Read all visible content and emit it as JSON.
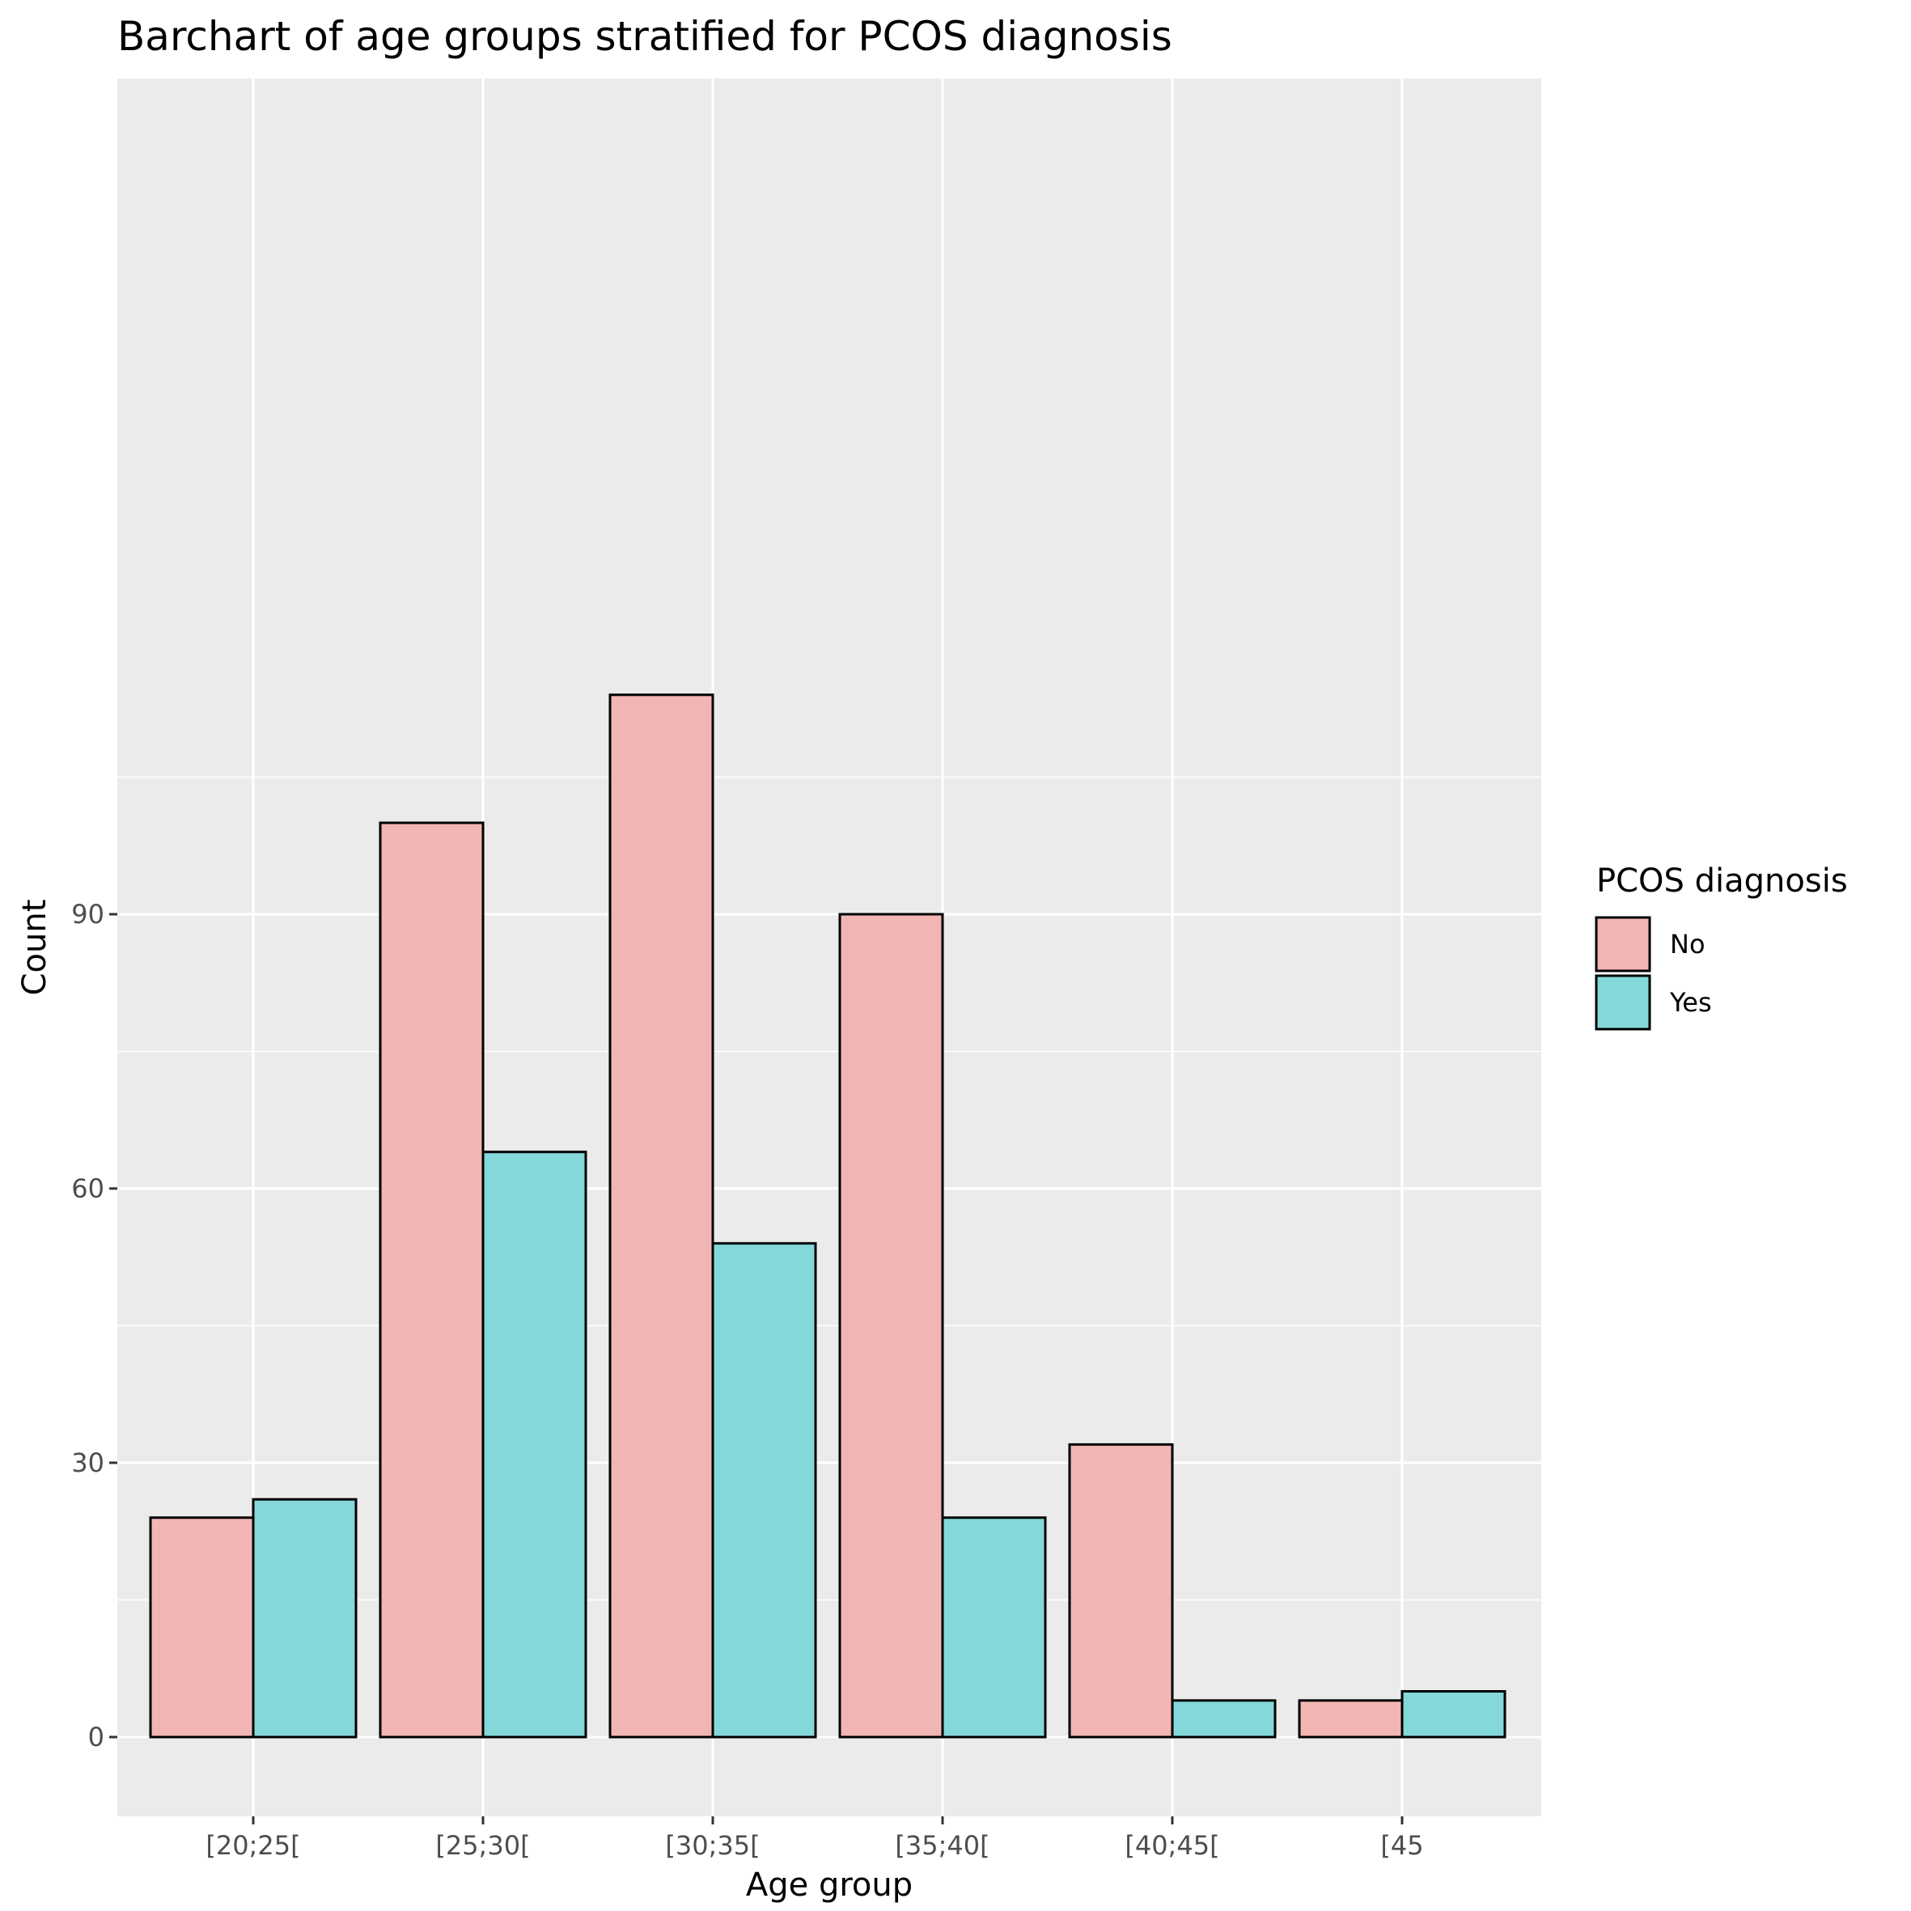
{
  "chart_data": {
    "type": "bar",
    "title": "Barchart of age groups stratified for PCOS diagnosis",
    "xlabel": "Age group",
    "ylabel": "Count",
    "categories": [
      "[20;25[",
      "[25;30[",
      "[30;35[",
      "[35;40[",
      "[40;45[",
      "[45"
    ],
    "series": [
      {
        "name": "No",
        "color": "#F1B6B3",
        "values": [
          24,
          100,
          114,
          90,
          32,
          4
        ]
      },
      {
        "name": "Yes",
        "color": "#85D8DA",
        "values": [
          26,
          64,
          54,
          24,
          4,
          5
        ]
      }
    ],
    "ylim": [
      -5,
      120
    ],
    "yticks": [
      0,
      30,
      60,
      90
    ],
    "grid": true,
    "legend": {
      "title": "PCOS diagnosis",
      "position": "right"
    }
  }
}
